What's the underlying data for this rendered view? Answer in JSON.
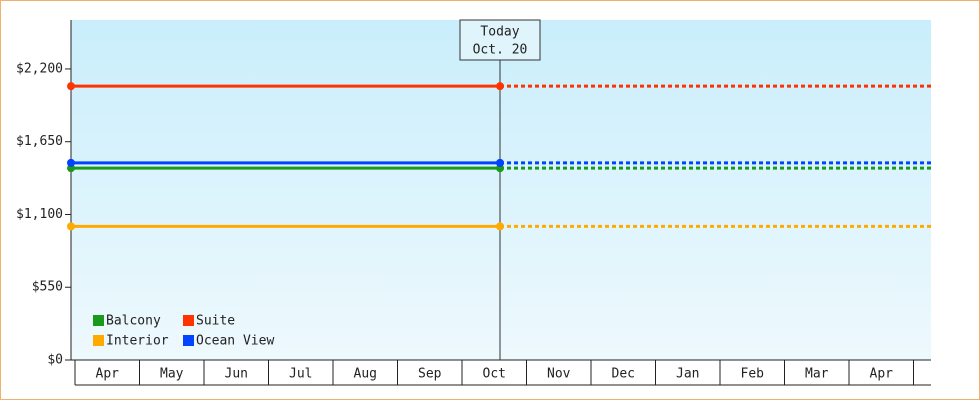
{
  "chart_data": {
    "type": "line",
    "annotation": {
      "title": "Today",
      "date": "Oct. 20"
    },
    "categories": [
      "Apr",
      "May",
      "Jun",
      "Jul",
      "Aug",
      "Sep",
      "Oct",
      "Nov",
      "Dec",
      "Jan",
      "Feb",
      "Mar",
      "Apr"
    ],
    "series": [
      {
        "name": "Balcony",
        "color": "#1a9a1a",
        "value": 1450
      },
      {
        "name": "Suite",
        "color": "#ff3300",
        "value": 2070
      },
      {
        "name": "Interior",
        "color": "#ffaa00",
        "value": 1010
      },
      {
        "name": "Ocean View",
        "color": "#0044ff",
        "value": 1490
      }
    ],
    "ylim": [
      0,
      2570
    ],
    "yticks": [
      {
        "value": 0,
        "label": "$0"
      },
      {
        "value": 550,
        "label": "$550"
      },
      {
        "value": 1100,
        "label": "$1,100"
      },
      {
        "value": 1650,
        "label": "$1,650"
      },
      {
        "value": 2200,
        "label": "$2,200"
      }
    ]
  }
}
